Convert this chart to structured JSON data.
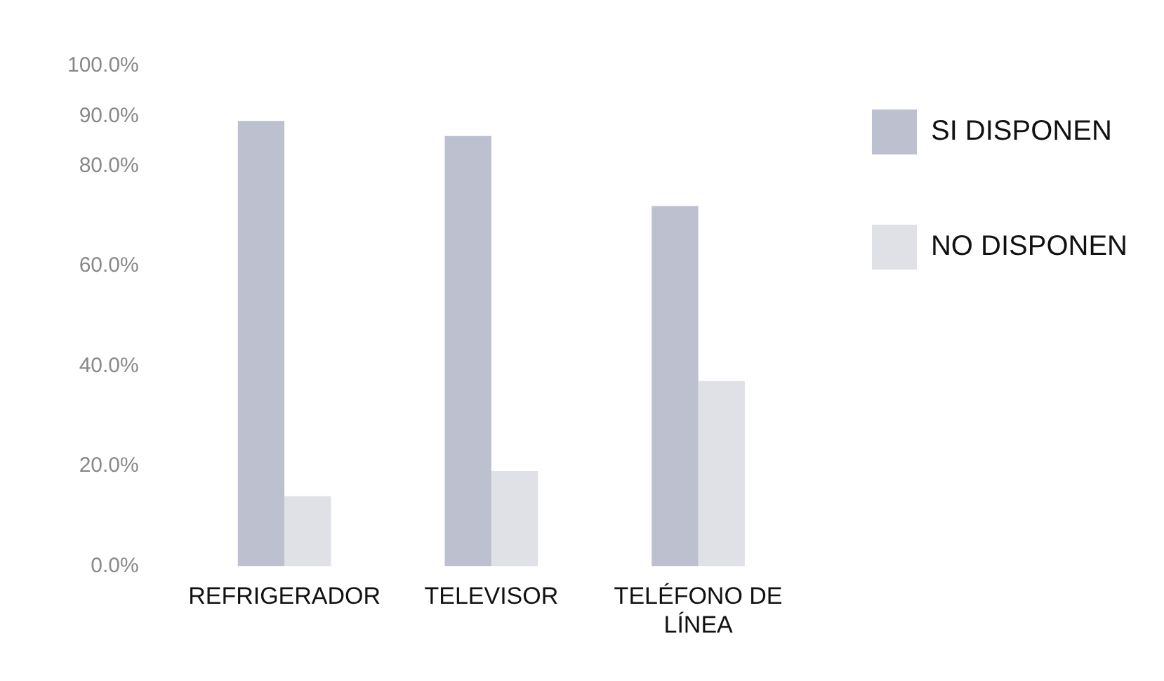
{
  "chart_data": {
    "type": "bar",
    "categories": [
      "REFRIGERADOR",
      "TELEVISOR",
      "TELÉFONO DE LÍNEA"
    ],
    "series": [
      {
        "name": "SI DISPONEN",
        "color": "#bcc0cf",
        "values": [
          89,
          86,
          72
        ]
      },
      {
        "name": "NO DISPONEN",
        "color": "#dfe1e7",
        "values": [
          14,
          19,
          37
        ]
      }
    ],
    "ylim": [
      0,
      100
    ],
    "yticks": [
      {
        "value": 0,
        "label": "0.0%"
      },
      {
        "value": 20,
        "label": "20.0%"
      },
      {
        "value": 40,
        "label": "40.0%"
      },
      {
        "value": 60,
        "label": "60.0%"
      },
      {
        "value": 80,
        "label": "80.0%"
      },
      {
        "value": 90,
        "label": "90.0%"
      },
      {
        "value": 100,
        "label": "100.0%"
      }
    ],
    "grid": false,
    "legend": "top right"
  }
}
